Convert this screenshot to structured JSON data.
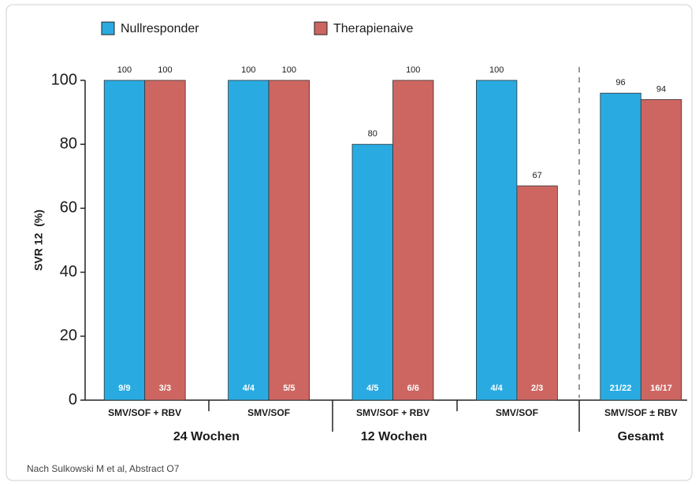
{
  "chart_data": {
    "type": "bar",
    "categories": [
      "SMV/SOF + RBV",
      "SMV/SOF",
      "SMV/SOF + RBV",
      "SMV/SOF",
      "SMV/SOF ± RBV"
    ],
    "series": [
      {
        "name": "Nullresponder",
        "color": "#29abe2",
        "values": [
          100,
          100,
          80,
          100,
          96
        ],
        "inner_labels": [
          "9/9",
          "4/4",
          "4/5",
          "4/4",
          "21/22"
        ]
      },
      {
        "name": "Therapienaive",
        "color": "#cd6661",
        "values": [
          100,
          100,
          100,
          67,
          94
        ],
        "inner_labels": [
          "3/3",
          "5/5",
          "6/6",
          "2/3",
          "16/17"
        ]
      }
    ],
    "groups": [
      "24 Wochen",
      "12 Wochen",
      "Gesamt"
    ],
    "ylabel": "SVR 12  (%)",
    "ylim": [
      0,
      100
    ],
    "yticks": [
      0,
      20,
      40,
      60,
      80,
      100
    ],
    "source": "Nach Sulkowski M et al, Abstract O7"
  }
}
